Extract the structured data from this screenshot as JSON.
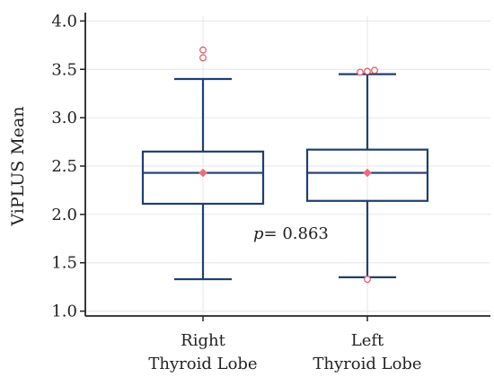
{
  "chart_data": {
    "type": "box",
    "ylabel": "ViPLUS Mean",
    "xlabel": "",
    "ylim": [
      0.95,
      4.05
    ],
    "yticks": [
      1.0,
      1.5,
      2.0,
      2.5,
      3.0,
      3.5,
      4.0
    ],
    "ytick_labels": [
      "1.0",
      "1.5",
      "2.0",
      "2.5",
      "3.0",
      "3.5",
      "4.0"
    ],
    "grid": true,
    "categories": [
      {
        "line1": "Right",
        "line2": "Thyroid Lobe"
      },
      {
        "line1": "Left",
        "line2": "Thyroid Lobe"
      }
    ],
    "boxes": [
      {
        "whisker_low": 1.33,
        "q1": 2.11,
        "median": 2.43,
        "q3": 2.65,
        "whisker_high": 3.4,
        "mean": 2.43,
        "outliers": [
          3.62,
          3.7
        ]
      },
      {
        "whisker_low": 1.35,
        "q1": 2.14,
        "median": 2.43,
        "q3": 2.67,
        "whisker_high": 3.45,
        "mean": 2.43,
        "outliers": [
          1.33,
          3.47,
          3.48,
          3.49
        ]
      }
    ],
    "annotation": {
      "italic": "p",
      "text": "= 0.863"
    },
    "colors": {
      "box": "#1f3f73",
      "mean": "#f06a7c",
      "outlier": "#e8535f",
      "grid": "#e6e6e6",
      "axis": "#222222"
    }
  }
}
